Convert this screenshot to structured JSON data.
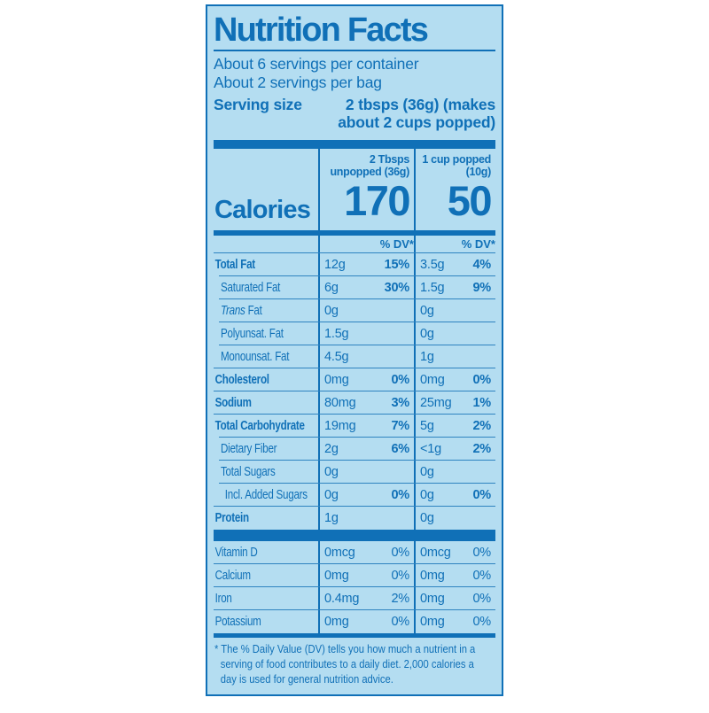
{
  "panel": {
    "title": "Nutrition Facts",
    "servings": [
      "About 6 servings per container",
      "About 2 servings per bag"
    ],
    "serving_size": {
      "label": "Serving size",
      "value": "2 tbsps (36g) (makes about 2 cups popped)"
    },
    "calories": {
      "label": "Calories",
      "columns": [
        {
          "header_line1": "2 Tbsps",
          "header_line2": "unpopped (36g)",
          "value": "170"
        },
        {
          "header_line1": "1 cup popped",
          "header_line2": "(10g)",
          "value": "50"
        }
      ]
    },
    "dv_header": "% DV*",
    "nutrients": [
      {
        "name": "Total Fat",
        "bold": true,
        "indent": 0,
        "amount1": "12g",
        "dv1": "15%",
        "amount2": "3.5g",
        "dv2": "4%"
      },
      {
        "name": "Saturated Fat",
        "bold": false,
        "indent": 1,
        "amount1": "6g",
        "dv1": "30%",
        "amount2": "1.5g",
        "dv2": "9%"
      },
      {
        "name": "Trans Fat",
        "bold": false,
        "indent": 1,
        "italic_word": "Trans",
        "amount1": "0g",
        "dv1": "",
        "amount2": "0g",
        "dv2": ""
      },
      {
        "name": "Polyunsat. Fat",
        "bold": false,
        "indent": 1,
        "amount1": "1.5g",
        "dv1": "",
        "amount2": "0g",
        "dv2": ""
      },
      {
        "name": "Monounsat. Fat",
        "bold": false,
        "indent": 1,
        "amount1": "4.5g",
        "dv1": "",
        "amount2": "1g",
        "dv2": ""
      },
      {
        "name": "Cholesterol",
        "bold": true,
        "indent": 0,
        "amount1": "0mg",
        "dv1": "0%",
        "amount2": "0mg",
        "dv2": "0%"
      },
      {
        "name": "Sodium",
        "bold": true,
        "indent": 0,
        "amount1": "80mg",
        "dv1": "3%",
        "amount2": "25mg",
        "dv2": "1%"
      },
      {
        "name": "Total Carbohydrate",
        "bold": true,
        "indent": 0,
        "amount1": "19mg",
        "dv1": "7%",
        "amount2": "5g",
        "dv2": "2%"
      },
      {
        "name": "Dietary Fiber",
        "bold": false,
        "indent": 1,
        "amount1": "2g",
        "dv1": "6%",
        "amount2": "<1g",
        "dv2": "2%"
      },
      {
        "name": "Total Sugars",
        "bold": false,
        "indent": 1,
        "amount1": "0g",
        "dv1": "",
        "amount2": "0g",
        "dv2": ""
      },
      {
        "name": "Incl. Added Sugars",
        "bold": false,
        "indent": 2,
        "amount1": "0g",
        "dv1": "0%",
        "amount2": "0g",
        "dv2": "0%"
      },
      {
        "name": "Protein",
        "bold": true,
        "indent": 0,
        "amount1": "1g",
        "dv1": "",
        "amount2": "0g",
        "dv2": ""
      }
    ],
    "vitamins": [
      {
        "name": "Vitamin D",
        "amount1": "0mcg",
        "dv1": "0%",
        "amount2": "0mcg",
        "dv2": "0%"
      },
      {
        "name": "Calcium",
        "amount1": "0mg",
        "dv1": "0%",
        "amount2": "0mg",
        "dv2": "0%"
      },
      {
        "name": "Iron",
        "amount1": "0.4mg",
        "dv1": "2%",
        "amount2": "0mg",
        "dv2": "0%"
      },
      {
        "name": "Potassium",
        "amount1": "0mg",
        "dv1": "0%",
        "amount2": "0mg",
        "dv2": "0%"
      }
    ],
    "footnote_lines": [
      "* The % Daily Value (DV) tells you how much a nutrient in a",
      "serving of food contributes to a daily diet. 2,000 calories a",
      "day is used for general nutrition advice."
    ],
    "colors": {
      "background": "#ffffff",
      "panel": "#b4ddf1",
      "ink": "#1070b7",
      "hairline": "#2e83c0"
    }
  }
}
